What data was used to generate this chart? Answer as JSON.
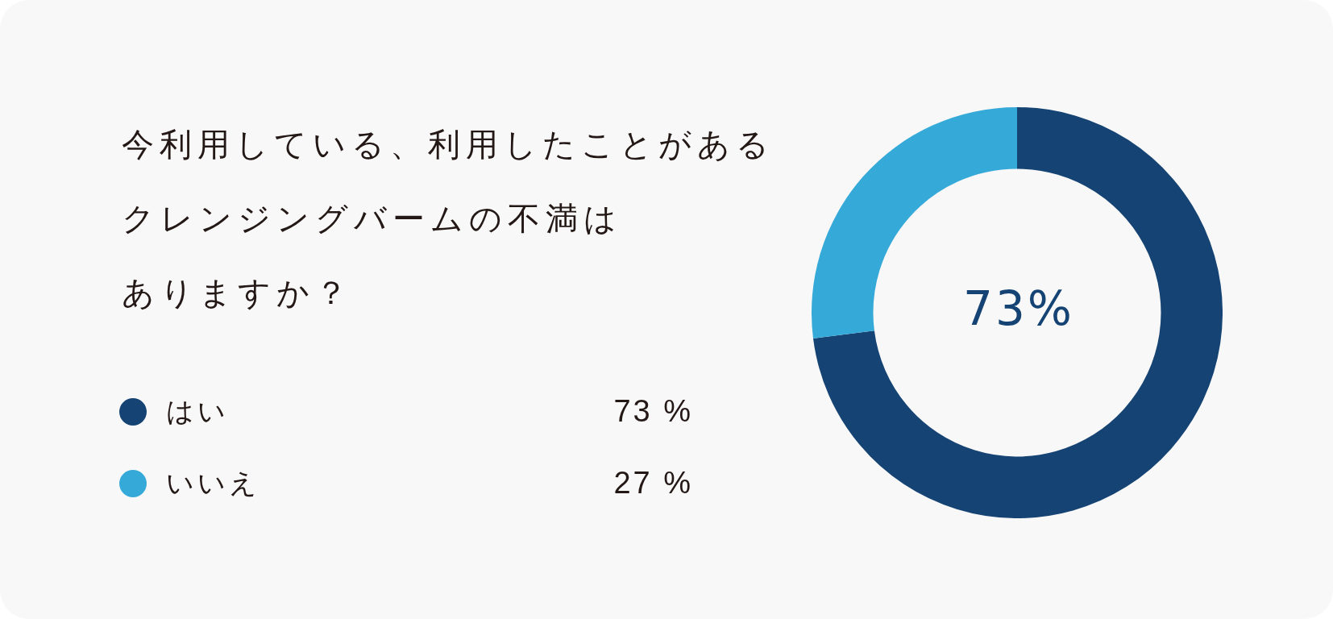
{
  "chart_data": {
    "type": "donut",
    "title": "今利用している、利用したことがあるクレンジングバームの不満はありますか？",
    "categories": [
      "はい",
      "いいえ"
    ],
    "values": [
      73,
      27
    ],
    "colors": [
      "#154373",
      "#35a9d8"
    ],
    "value_labels": [
      "73 %",
      "27 %"
    ],
    "annotations": [
      "73%"
    ],
    "legend": "left"
  }
}
